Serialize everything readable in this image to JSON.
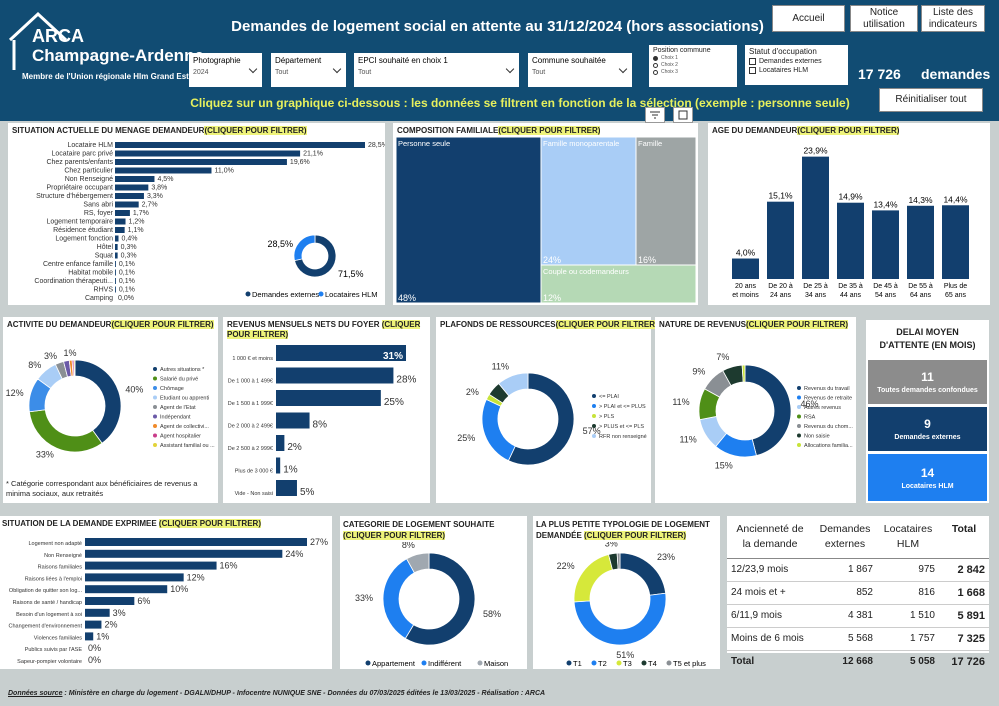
{
  "header": {
    "logo_arca": "ARCA",
    "logo_region": "Champagne-Ardenne",
    "logo_sub": "Membre de l'Union régionale Hlm Grand Est",
    "title": "Demandes de logement social en attente au 31/12/2024 (hors associations)",
    "buttons": {
      "accueil": "Accueil",
      "notice": "Notice utilisation",
      "liste": "Liste des indicateurs"
    },
    "filters": {
      "photographie": {
        "label": "Photographie",
        "value": "2024"
      },
      "departement": {
        "label": "Département",
        "value": "Tout"
      },
      "epci": {
        "label": "EPCI souhaité en choix 1",
        "value": "Tout"
      },
      "commune": {
        "label": "Commune souhaitée",
        "value": "Tout"
      }
    },
    "position": {
      "label": "Position commune",
      "options": [
        "Choix 1",
        "Choix 2",
        "Choix 3"
      ],
      "selected": 0
    },
    "statut": {
      "label": "Statut d'occupation",
      "options": [
        "Demandes externes",
        "Locataires HLM"
      ]
    },
    "count": "17 726",
    "count_label": "demandes",
    "hint": "Cliquez sur un graphique ci-dessous : les données se filtrent en fonction de la sélection (exemple : personne seule)",
    "reset": "Réinitialiser tout"
  },
  "filter_hint": "(CLIQUER POUR FILTRER)",
  "panels": {
    "situation": "SITUATION ACTUELLE DU MENAGE DEMANDEUR",
    "composition": "COMPOSITION FAMILIALE",
    "age": "AGE DU DEMANDEUR",
    "activite": "ACTIVITE DU DEMANDEUR",
    "revenus": "REVENUS MENSUELS NETS DU FOYER",
    "plafonds": "PLAFONDS DE RESSOURCES",
    "nature": "NATURE DE REVENUS",
    "delai": "DELAI MOYEN D'ATTENTE (EN MOIS)",
    "situation_demande": "SITUATION DE LA DEMANDE EXPRIMEE",
    "categorie": "CATEGORIE DE LOGEMENT SOUHAITE",
    "typologie": "LA PLUS PETITE TYPOLOGIE DE LOGEMENT DEMANDÉE"
  },
  "activite_note": "* Catégorie correspondant aux bénéficiaires de revenus a minima sociaux, aux retraités",
  "delai": [
    {
      "value": "11",
      "label": "Toutes demandes confondues",
      "color": "#8c8c8c"
    },
    {
      "value": "9",
      "label": "Demandes externes",
      "color": "#123f6e"
    },
    {
      "value": "14",
      "label": "Locataires HLM",
      "color": "#1e7ff0"
    }
  ],
  "anciennete": {
    "headers": [
      "Ancienneté de la demande",
      "Demandes externes",
      "Locataires HLM",
      "Total"
    ],
    "rows": [
      [
        "12/23,9 mois",
        "1 867",
        "975",
        "2 842"
      ],
      [
        "24 mois et +",
        "852",
        "816",
        "1 668"
      ],
      [
        "6/11,9 mois",
        "4 381",
        "1 510",
        "5 891"
      ],
      [
        "Moins de 6 mois",
        "5 568",
        "1 757",
        "7 325"
      ]
    ],
    "total": [
      "Total",
      "12 668",
      "5 058",
      "17 726"
    ]
  },
  "source": {
    "label": "Données source",
    "text": " : Ministère en charge du logement - DGALN/DHUP - Infocentre NUNIQUE SNE - Données du 07/03/2025 éditées le 13/03/2025 - Réalisation : ARCA"
  },
  "chart_data": [
    {
      "id": "situation",
      "type": "bar",
      "orientation": "horizontal",
      "categories": [
        "Locataire HLM",
        "Locataire parc privé",
        "Chez parents/enfants",
        "Chez particulier",
        "Non Renseigné",
        "Propriétaire occupant",
        "Structure d'hébergement",
        "Sans abri",
        "RS, foyer",
        "Logement temporaire",
        "Résidence étudiant",
        "Logement fonction",
        "Hôtel",
        "Squat",
        "Centre enfance famille",
        "Habitat mobile",
        "Coordination thérapeuti...",
        "RHVS",
        "Camping"
      ],
      "values": [
        28.5,
        21.1,
        19.6,
        11.0,
        4.5,
        3.8,
        3.3,
        2.7,
        1.7,
        1.2,
        1.1,
        0.4,
        0.3,
        0.3,
        0.1,
        0.1,
        0.1,
        0.1,
        0.0
      ],
      "labels": [
        "28,5%",
        "21,1%",
        "19,6%",
        "11,0%",
        "4,5%",
        "3,8%",
        "3,3%",
        "2,7%",
        "1,7%",
        "1,2%",
        "1,1%",
        "0,4%",
        "0,3%",
        "0,3%",
        "0,1%",
        "0,1%",
        "0,1%",
        "0,1%",
        "0,0%"
      ],
      "donut": {
        "series": [
          {
            "name": "Demandes externes",
            "value": 71.5,
            "label": "71,5%",
            "color": "#123f6e"
          },
          {
            "name": "Locataires HLM",
            "value": 28.5,
            "label": "28,5%",
            "color": "#1e7ff0"
          }
        ]
      }
    },
    {
      "id": "composition",
      "type": "treemap",
      "items": [
        {
          "name": "Personne seule",
          "value": 48,
          "label": "48%",
          "color": "#123f6e"
        },
        {
          "name": "Famille monoparentale",
          "value": 24,
          "label": "24%",
          "color": "#a9cdf6"
        },
        {
          "name": "Famille",
          "value": 16,
          "label": "16%",
          "color": "#9ea5a5"
        },
        {
          "name": "Couple ou codemandeurs",
          "value": 12,
          "label": "12%",
          "color": "#b5d9b5"
        }
      ]
    },
    {
      "id": "age",
      "type": "bar",
      "categories": [
        "20 ans et moins",
        "De 20 à 24 ans",
        "De 25 à 34 ans",
        "De 35 à 44 ans",
        "De 45 à 54 ans",
        "De 55 à 64 ans",
        "Plus de 65 ans"
      ],
      "values": [
        4.0,
        15.1,
        23.9,
        14.9,
        13.4,
        14.3,
        14.4
      ],
      "labels": [
        "4,0%",
        "15,1%",
        "23,9%",
        "14,9%",
        "13,4%",
        "14,3%",
        "14,4%"
      ],
      "color": "#123f6e"
    },
    {
      "id": "activite",
      "type": "pie",
      "donut": true,
      "series": [
        {
          "name": "Autres situations *",
          "value": 40,
          "label": "40%",
          "color": "#123f6e"
        },
        {
          "name": "Salarié du privé",
          "value": 33,
          "label": "33%",
          "color": "#4f8f17"
        },
        {
          "name": "Chômage",
          "value": 12,
          "label": "12%",
          "color": "#3c8de8"
        },
        {
          "name": "Etudiant ou apprenti",
          "value": 8,
          "label": "8%",
          "color": "#a9cdf6"
        },
        {
          "name": "Agent de l'Etat",
          "value": 3,
          "label": "3%",
          "color": "#8a8f94"
        },
        {
          "name": "Indépendant",
          "value": 2,
          "label": "",
          "color": "#6b5aa8"
        },
        {
          "name": "Agent de collectivi...",
          "value": 1,
          "label": "1%",
          "color": "#f08a2a"
        },
        {
          "name": "Agent hospitalier",
          "value": 0.6,
          "label": "",
          "color": "#c93c8a"
        },
        {
          "name": "Assistant familial ou ...",
          "value": 0.4,
          "label": "",
          "color": "#e2d33a"
        }
      ]
    },
    {
      "id": "revenus",
      "type": "bar",
      "orientation": "horizontal",
      "categories": [
        "1 000 € et moins",
        "De 1 000 à 1 499€",
        "De 1 500 à 1 999€",
        "De 2 000 à 2 499€",
        "De 2 500 à 2 999€",
        "Plus de 3 000 €",
        "Vide - Non saisi"
      ],
      "values": [
        31,
        28,
        25,
        8,
        2,
        1,
        5
      ],
      "labels": [
        "31%",
        "28%",
        "25%",
        "8%",
        "2%",
        "1%",
        "5%"
      ],
      "color": "#123f6e"
    },
    {
      "id": "plafonds",
      "type": "pie",
      "donut": true,
      "series": [
        {
          "name": "<= PLAI",
          "value": 57,
          "label": "57%",
          "color": "#123f6e"
        },
        {
          "name": "> PLAI et <= PLUS",
          "value": 25,
          "label": "25%",
          "color": "#1e7ff0"
        },
        {
          "name": "> PLS",
          "value": 2,
          "label": "2%",
          "color": "#c7e33a"
        },
        {
          "name": "> PLUS et <= PLS",
          "value": 5,
          "label": "",
          "color": "#1d3a2f"
        },
        {
          "name": "RFR non renseigné",
          "value": 11,
          "label": "11%",
          "color": "#a9cdf6"
        }
      ]
    },
    {
      "id": "nature",
      "type": "pie",
      "donut": true,
      "series": [
        {
          "name": "Revenus du travail",
          "value": 46,
          "label": "46%",
          "color": "#123f6e"
        },
        {
          "name": "Revenus de retraite",
          "value": 15,
          "label": "15%",
          "color": "#1e7ff0"
        },
        {
          "name": "Autres revenus",
          "value": 11,
          "label": "11%",
          "color": "#a9cdf6"
        },
        {
          "name": "RSA",
          "value": 11,
          "label": "11%",
          "color": "#4f8f17"
        },
        {
          "name": "Revenus du chom...",
          "value": 9,
          "label": "9%",
          "color": "#8a8f94"
        },
        {
          "name": "Non saisie",
          "value": 7,
          "label": "7%",
          "color": "#1d3a2f"
        },
        {
          "name": "Allocations familia...",
          "value": 1,
          "label": "",
          "color": "#c7e33a"
        }
      ]
    },
    {
      "id": "situation_demande",
      "type": "bar",
      "orientation": "horizontal",
      "categories": [
        "Logement non adapté",
        "Non Renseigné",
        "Raisons familiales",
        "Raisons liées à l'emploi",
        "Obligation de quitter son log...",
        "Raisons de santé / handicap",
        "Besoin d'un logement à soi",
        "Changement d'environnement",
        "Violences familiales",
        "Publics suivis par l'ASE",
        "Sapeur-pompier volontaire"
      ],
      "values": [
        27,
        24,
        16,
        12,
        10,
        6,
        3,
        2,
        1,
        0,
        0
      ],
      "labels": [
        "27%",
        "24%",
        "16%",
        "12%",
        "10%",
        "6%",
        "3%",
        "2%",
        "1%",
        "0%",
        "0%"
      ],
      "color": "#123f6e"
    },
    {
      "id": "categorie",
      "type": "pie",
      "donut": true,
      "series": [
        {
          "name": "Appartement",
          "value": 58,
          "label": "58%",
          "color": "#123f6e"
        },
        {
          "name": "Indifférent",
          "value": 33,
          "label": "33%",
          "color": "#1e7ff0"
        },
        {
          "name": "Maison",
          "value": 8,
          "label": "8%",
          "color": "#a0a8b0"
        }
      ]
    },
    {
      "id": "typologie",
      "type": "pie",
      "donut": true,
      "series": [
        {
          "name": "T1",
          "value": 23,
          "label": "23%",
          "color": "#123f6e"
        },
        {
          "name": "T2",
          "value": 51,
          "label": "51%",
          "color": "#1e7ff0"
        },
        {
          "name": "T3",
          "value": 22,
          "label": "22%",
          "color": "#d6e83a"
        },
        {
          "name": "T4",
          "value": 3,
          "label": "3%",
          "color": "#1d3a2f"
        },
        {
          "name": "T5 et plus",
          "value": 1,
          "label": "",
          "color": "#8a8f94"
        }
      ]
    }
  ]
}
